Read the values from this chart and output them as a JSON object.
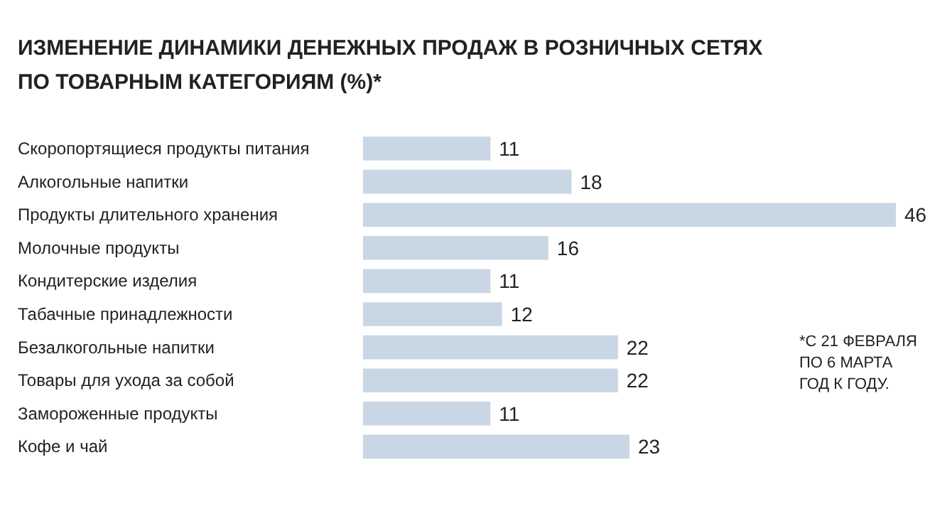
{
  "chart_data": {
    "type": "bar",
    "orientation": "horizontal",
    "title": "ИЗМЕНЕНИЕ ДИНАМИКИ ДЕНЕЖНЫХ ПРОДАЖ В РОЗНИЧНЫХ СЕТЯХ ПО ТОВАРНЫМ КАТЕГОРИЯМ (%)*",
    "categories": [
      "Скоропортящиеся продукты питания",
      "Алкогольные напитки",
      "Продукты длительного хранения",
      "Молочные продукты",
      "Кондитерские изделия",
      "Табачные принадлежности",
      "Безалкогольные напитки",
      "Товары для ухода за собой",
      "Замороженные продукты",
      "Кофе и чай"
    ],
    "values": [
      11,
      18,
      46,
      16,
      11,
      12,
      22,
      22,
      11,
      23
    ],
    "color": "#c9d6e4",
    "data_labels": true,
    "annotations": [
      "*С 21 ФЕВРАЛЯ ПО 6 МАРТА ГОД К ГОДУ."
    ]
  }
}
